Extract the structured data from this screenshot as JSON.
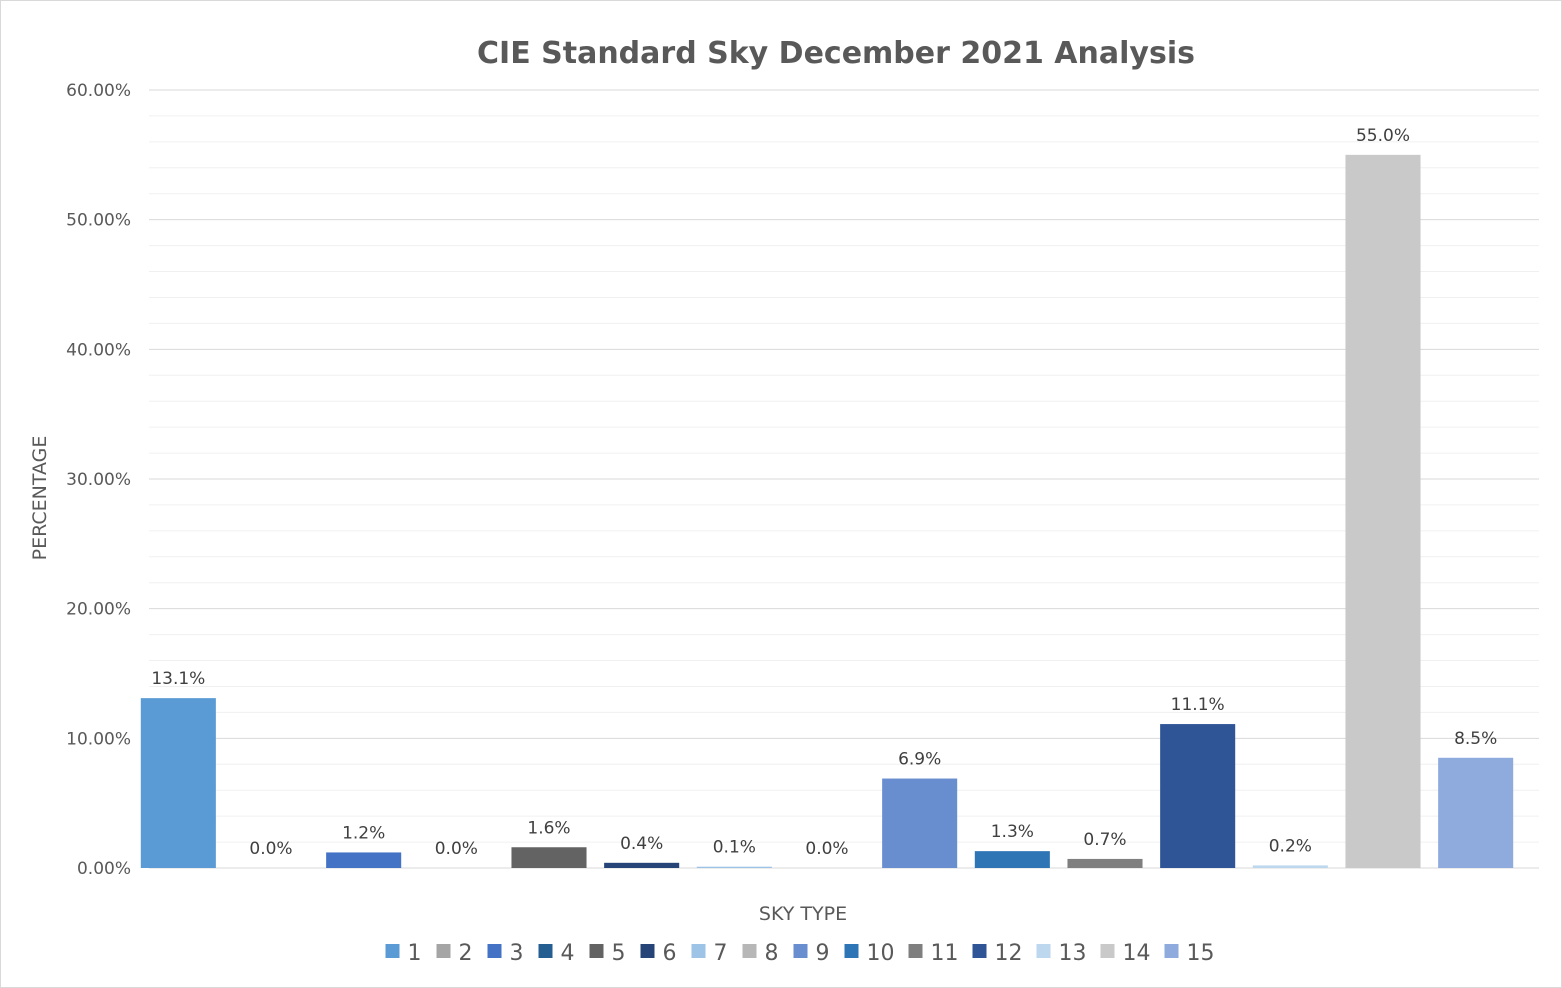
{
  "chart_data": {
    "type": "bar",
    "title": "CIE Standard Sky December 2021 Analysis",
    "xlabel": "SKY TYPE",
    "ylabel": "PERCENTAGE",
    "ylim": [
      0,
      0.6
    ],
    "yticks": [
      0,
      0.1,
      0.2,
      0.3,
      0.4,
      0.5,
      0.6
    ],
    "ytick_labels": [
      "0.00%",
      "10.00%",
      "20.00%",
      "30.00%",
      "40.00%",
      "50.00%",
      "60.00%"
    ],
    "minor_gridlines": true,
    "legend_position": "bottom",
    "categories": [
      "1",
      "2",
      "3",
      "4",
      "5",
      "6",
      "7",
      "8",
      "9",
      "10",
      "11",
      "12",
      "13",
      "14",
      "15"
    ],
    "values": [
      0.131,
      0.0,
      0.012,
      0.0,
      0.016,
      0.004,
      0.001,
      0.0,
      0.069,
      0.013,
      0.007,
      0.111,
      0.002,
      0.55,
      0.085
    ],
    "data_labels": [
      "13.1%",
      "0.0%",
      "1.2%",
      "0.0%",
      "1.6%",
      "0.4%",
      "0.1%",
      "0.0%",
      "6.9%",
      "1.3%",
      "0.7%",
      "11.1%",
      "0.2%",
      "55.0%",
      "8.5%"
    ],
    "colors": [
      "#5b9bd5",
      "#a5a5a5",
      "#4472c4",
      "#255e91",
      "#636363",
      "#264478",
      "#9dc3e6",
      "#b7b7b7",
      "#698ed0",
      "#2e75b6",
      "#7f7f7f",
      "#2f5597",
      "#bdd7ee",
      "#c9c9c9",
      "#8faadc"
    ],
    "legend": [
      "1",
      "2",
      "3",
      "4",
      "5",
      "6",
      "7",
      "8",
      "9",
      "10",
      "11",
      "12",
      "13",
      "14",
      "15"
    ]
  }
}
